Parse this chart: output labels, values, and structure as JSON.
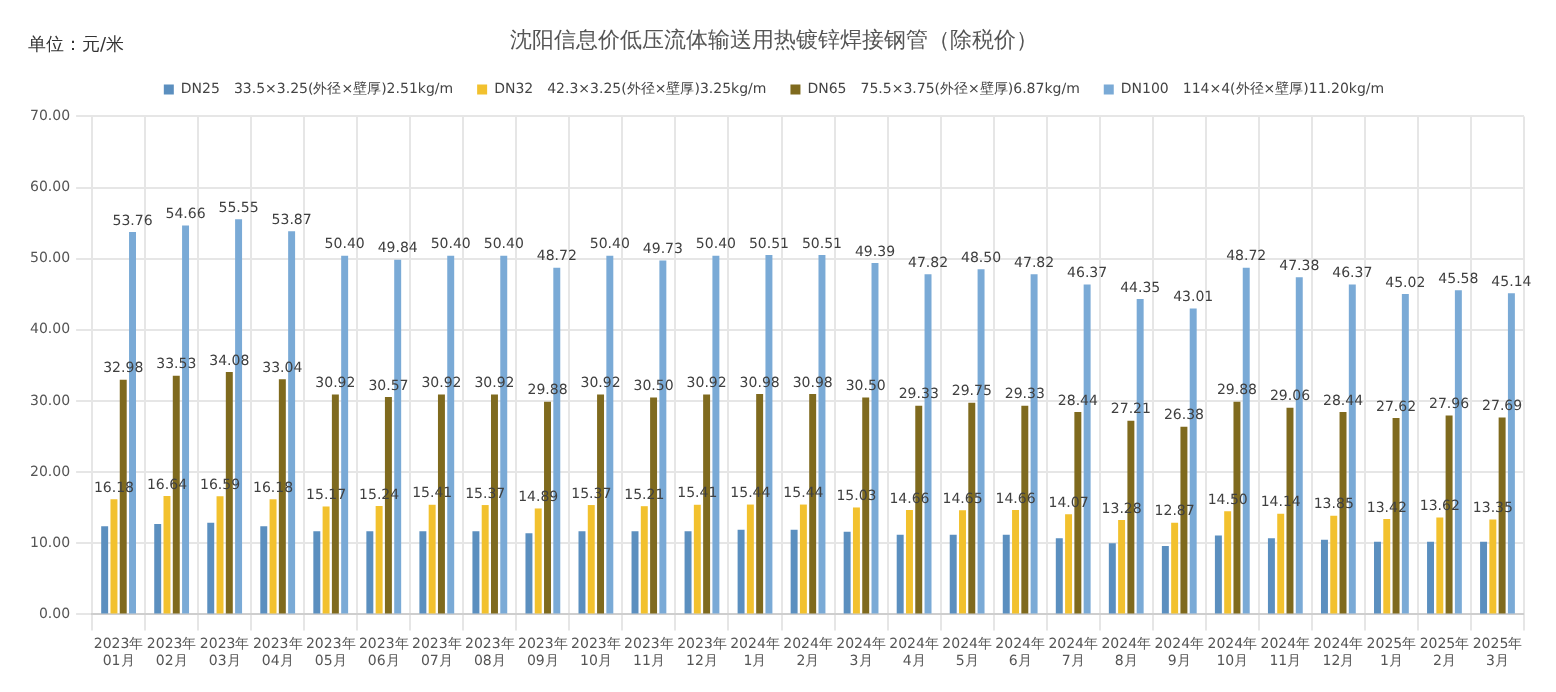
{
  "chart_data": {
    "type": "bar",
    "title": "沈阳信息价低压流体输送用热镀锌焊接钢管（除税价）",
    "annotations": [
      "单位：元/米"
    ],
    "categories": [
      "2023年01月",
      "2023年02月",
      "2023年03月",
      "2023年04月",
      "2023年05月",
      "2023年06月",
      "2023年07月",
      "2023年08月",
      "2023年09月",
      "2023年10月",
      "2023年11月",
      "2023年12月",
      "2024年1月",
      "2024年2月",
      "2024年3月",
      "2024年4月",
      "2024年5月",
      "2024年6月",
      "2024年7月",
      "2024年8月",
      "2024年9月",
      "2024年10月",
      "2024年11月",
      "2024年12月",
      "2025年1月",
      "2025年2月",
      "2025年3月"
    ],
    "series": [
      {
        "name": "DN25　33.5×3.25(外径×壁厚)2.51kg/m",
        "color": "#5b8fbf",
        "values": [
          12.4,
          12.7,
          12.9,
          12.4,
          11.7,
          11.7,
          11.7,
          11.7,
          11.4,
          11.7,
          11.7,
          11.7,
          11.9,
          11.9,
          11.6,
          11.2,
          11.2,
          11.2,
          10.7,
          10.0,
          9.6,
          11.1,
          10.7,
          10.5,
          10.2,
          10.2,
          10.2
        ]
      },
      {
        "name": "DN32　42.3×3.25(外径×壁厚)3.25kg/m",
        "color": "#f2c12e",
        "values": [
          16.18,
          16.64,
          16.59,
          16.18,
          15.17,
          15.24,
          15.41,
          15.37,
          14.89,
          15.37,
          15.21,
          15.41,
          15.44,
          15.44,
          15.03,
          14.66,
          14.65,
          14.66,
          14.07,
          13.28,
          12.87,
          14.5,
          14.14,
          13.85,
          13.42,
          13.62,
          13.35
        ],
        "value_labels": [
          "16.18",
          "16.64",
          "16.59",
          "16.18",
          "15.17",
          "15.24",
          "15.41",
          "15.37",
          "14.89",
          "15.37",
          "15.21",
          "15.41",
          "15.44",
          "15.44",
          "15.03",
          "14.66",
          "14.65",
          "14.66",
          "14.07",
          "13.28",
          "12.87",
          "14.50",
          "14.14",
          "13.85",
          "13.42",
          "13.62",
          "13.35"
        ]
      },
      {
        "name": "DN65　75.5×3.75(外径×壁厚)6.87kg/m",
        "color": "#7f6a1e",
        "values": [
          32.98,
          33.53,
          34.08,
          33.04,
          30.92,
          30.57,
          30.92,
          30.92,
          29.88,
          30.92,
          30.5,
          30.92,
          30.98,
          30.98,
          30.5,
          29.33,
          29.75,
          29.33,
          28.44,
          27.21,
          26.38,
          29.88,
          29.06,
          28.44,
          27.62,
          27.96,
          27.69
        ],
        "value_labels": [
          "32.98",
          "33.53",
          "34.08",
          "33.04",
          "30.92",
          "30.57",
          "30.92",
          "30.92",
          "29.88",
          "30.92",
          "30.50",
          "30.92",
          "30.98",
          "30.98",
          "30.50",
          "29.33",
          "29.75",
          "29.33",
          "28.44",
          "27.21",
          "26.38",
          "29.88",
          "29.06",
          "28.44",
          "27.62",
          "27.96",
          "27.69"
        ]
      },
      {
        "name": "DN100　114×4(外径×壁厚)11.20kg/m",
        "color": "#7aaad6",
        "values": [
          53.76,
          54.66,
          55.55,
          53.87,
          50.4,
          49.84,
          50.4,
          50.4,
          48.72,
          50.4,
          49.73,
          50.4,
          50.51,
          50.51,
          49.39,
          47.82,
          48.5,
          47.82,
          46.37,
          44.35,
          43.01,
          48.72,
          47.38,
          46.37,
          45.02,
          45.58,
          45.14
        ],
        "value_labels": [
          "53.76",
          "54.66",
          "55.55",
          "53.87",
          "50.40",
          "49.84",
          "50.40",
          "50.40",
          "48.72",
          "50.40",
          "49.73",
          "50.40",
          "50.51",
          "50.51",
          "49.39",
          "47.82",
          "48.50",
          "47.82",
          "46.37",
          "44.35",
          "43.01",
          "48.72",
          "47.38",
          "46.37",
          "45.02",
          "45.58",
          "45.14"
        ]
      }
    ],
    "ylim": [
      0,
      70
    ],
    "yticks": [
      {
        "value": 0,
        "label": "0.00"
      },
      {
        "value": 10,
        "label": "10.00"
      },
      {
        "value": 20,
        "label": "20.00"
      },
      {
        "value": 30,
        "label": "30.00"
      },
      {
        "value": 40,
        "label": "40.00"
      },
      {
        "value": 50,
        "label": "50.00"
      },
      {
        "value": 60,
        "label": "60.00"
      },
      {
        "value": 70,
        "label": "70.00"
      }
    ],
    "grid": true,
    "legend": "top"
  }
}
